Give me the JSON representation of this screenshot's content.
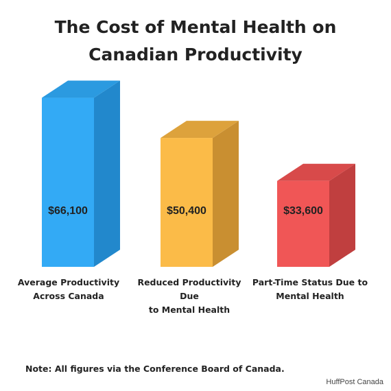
{
  "title_lines": [
    "The Cost of Mental Health on",
    "Canadian Productivity"
  ],
  "chart_data": {
    "type": "bar",
    "title": "The Cost of Mental Health on Canadian Productivity",
    "categories": [
      [
        "Average Productivity",
        "Across Canada"
      ],
      [
        "Reduced Productivity Due",
        "to Mental Health"
      ],
      [
        "Part-Time Status Due to",
        "Mental Health"
      ]
    ],
    "values": [
      66100,
      50400,
      33600
    ],
    "value_labels": [
      "$66,100",
      "$50,400",
      "$33,600"
    ],
    "colors": [
      {
        "front": "#33aaf5",
        "side": "#2288cc",
        "top": "#2b9ae0"
      },
      {
        "front": "#fbbb48",
        "side": "#c98f31",
        "top": "#dda23c"
      },
      {
        "front": "#f05656",
        "side": "#c03f3f",
        "top": "#d84a4a"
      }
    ],
    "ylim": [
      0,
      70000
    ],
    "grid": false,
    "legend": "none"
  },
  "note": "Note: All figures via the Conference Board of Canada.",
  "credit": "HuffPost Canada"
}
